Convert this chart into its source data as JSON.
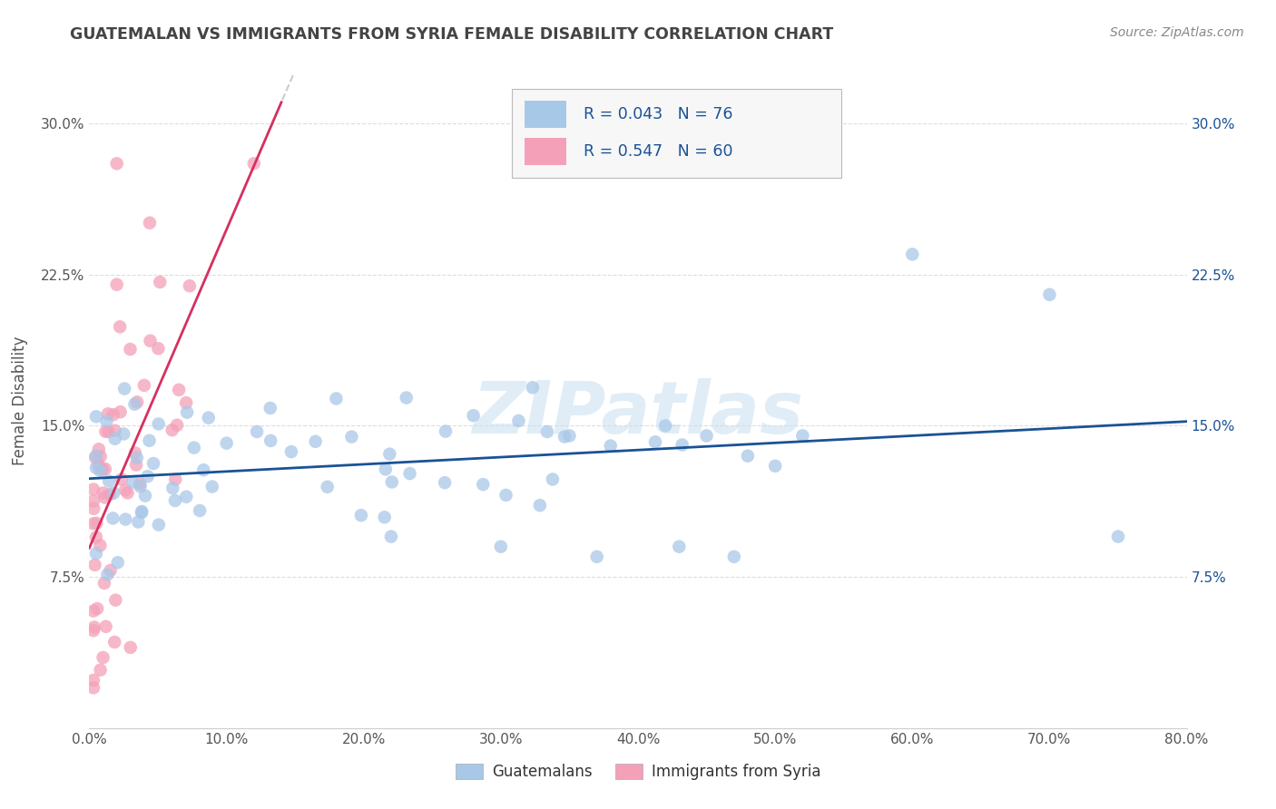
{
  "title": "GUATEMALAN VS IMMIGRANTS FROM SYRIA FEMALE DISABILITY CORRELATION CHART",
  "source_text": "Source: ZipAtlas.com",
  "ylabel": "Female Disability",
  "xlim": [
    0.0,
    0.8
  ],
  "ylim": [
    0.0,
    0.325
  ],
  "yticks": [
    0.075,
    0.15,
    0.225,
    0.3
  ],
  "ytick_labels": [
    "7.5%",
    "15.0%",
    "22.5%",
    "30.0%"
  ],
  "xticks": [
    0.0,
    0.1,
    0.2,
    0.3,
    0.4,
    0.5,
    0.6,
    0.7,
    0.8
  ],
  "xtick_labels": [
    "0.0%",
    "10.0%",
    "20.0%",
    "30.0%",
    "40.0%",
    "50.0%",
    "60.0%",
    "70.0%",
    "80.0%"
  ],
  "blue_color": "#a8c8e8",
  "pink_color": "#f4a0b8",
  "blue_line_color": "#1a5296",
  "pink_line_color": "#d63060",
  "pink_line_dashed_color": "#e8a0b8",
  "R_blue": 0.043,
  "N_blue": 76,
  "R_pink": 0.547,
  "N_pink": 60,
  "legend_label_blue": "Guatemalans",
  "legend_label_pink": "Immigrants from Syria",
  "watermark": "ZIPatlas",
  "title_color": "#444444",
  "source_color": "#888888",
  "tick_color_left": "#555555",
  "tick_color_right": "#1a5296"
}
